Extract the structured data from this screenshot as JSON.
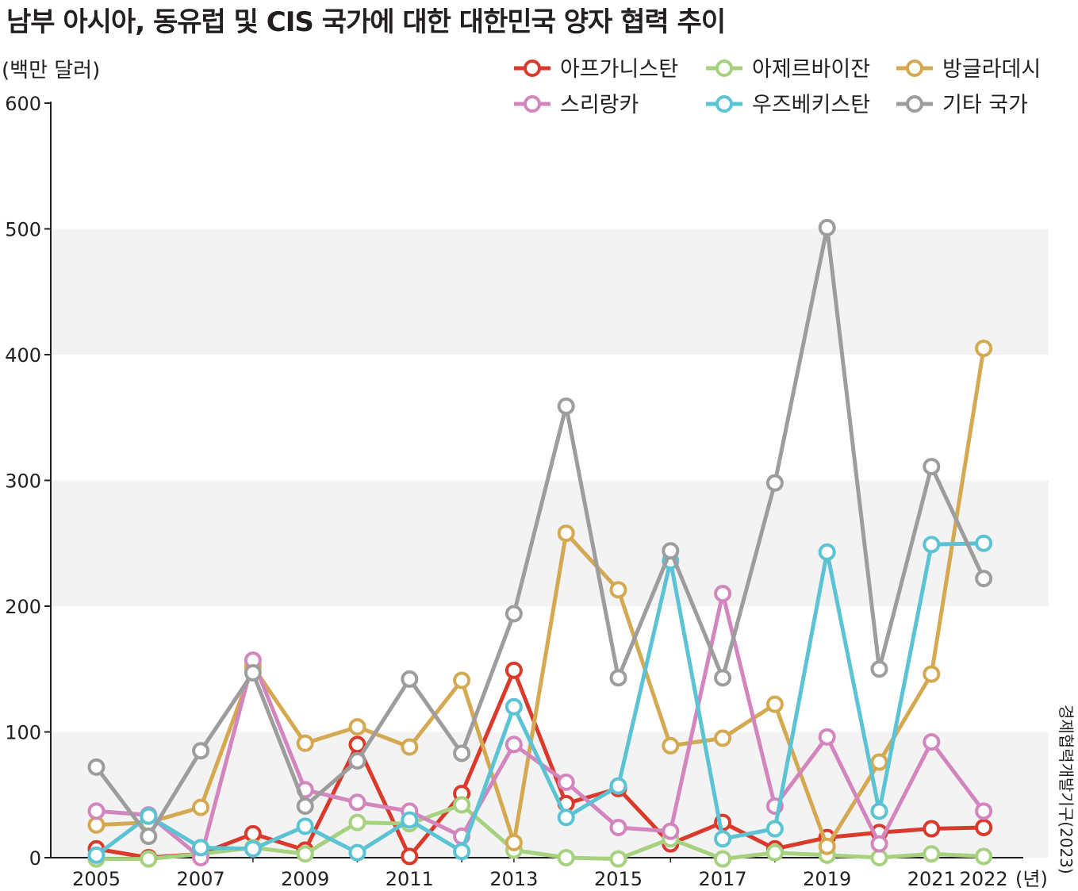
{
  "chart_data": {
    "type": "line",
    "title": "남부 아시아, 동유럽 및 CIS 국가에 대한 대한민국 양자 협력 추이",
    "ylabel": "(백만 달러)",
    "xunit": "(년)",
    "source": "경제협력개발기구(2023)",
    "ylim": [
      0,
      600
    ],
    "yticks": [
      "0",
      "100",
      "200",
      "300",
      "400",
      "500",
      "600"
    ],
    "xtick_labels": [
      "2005",
      "2007",
      "2009",
      "2011",
      "2013",
      "2015",
      "2017",
      "2019",
      "2021",
      "2022"
    ],
    "xtick_years": [
      2005,
      2007,
      2009,
      2011,
      2013,
      2015,
      2017,
      2019,
      2021,
      2022
    ],
    "grid": "alternating horizontal bands",
    "legend_position": "top-right",
    "x": [
      2005,
      2006,
      2007,
      2008,
      2009,
      2010,
      2011,
      2012,
      2013,
      2014,
      2015,
      2016,
      2017,
      2018,
      2019,
      2020,
      2021,
      2022
    ],
    "series": [
      {
        "name": "아프가니스탄",
        "color": "#d93a2b",
        "values": [
          7,
          0,
          3,
          19,
          6,
          90,
          1,
          51,
          149,
          43,
          55,
          11,
          28,
          7,
          16,
          20,
          23,
          24
        ]
      },
      {
        "name": "아제르바이잔",
        "color": "#a6d17f",
        "values": [
          -1,
          -1,
          3,
          8,
          3,
          28,
          27,
          42,
          6,
          0,
          -1,
          15,
          -1,
          4,
          2,
          0,
          3,
          1
        ]
      },
      {
        "name": "방글라데시",
        "color": "#d4a951",
        "values": [
          26,
          28,
          40,
          152,
          91,
          104,
          88,
          141,
          12,
          258,
          213,
          89,
          95,
          122,
          9,
          76,
          146,
          405
        ]
      },
      {
        "name": "스리랑카",
        "color": "#d385be",
        "values": [
          37,
          34,
          0,
          157,
          54,
          44,
          37,
          17,
          90,
          60,
          24,
          21,
          210,
          41,
          96,
          11,
          92,
          37
        ]
      },
      {
        "name": "우즈베키스탄",
        "color": "#5bc3d3",
        "values": [
          2,
          33,
          8,
          7,
          25,
          4,
          30,
          5,
          120,
          32,
          57,
          236,
          15,
          23,
          243,
          37,
          249,
          250
        ]
      },
      {
        "name": "기타 국가",
        "color": "#9d9d9d",
        "values": [
          72,
          17,
          85,
          147,
          41,
          77,
          142,
          83,
          194,
          359,
          143,
          244,
          143,
          298,
          501,
          150,
          311,
          222
        ]
      }
    ]
  }
}
